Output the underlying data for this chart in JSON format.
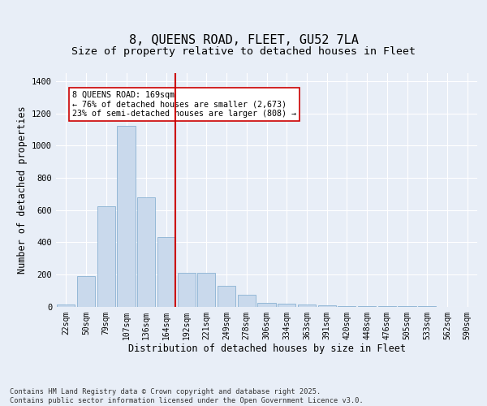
{
  "title1": "8, QUEENS ROAD, FLEET, GU52 7LA",
  "title2": "Size of property relative to detached houses in Fleet",
  "xlabel": "Distribution of detached houses by size in Fleet",
  "ylabel": "Number of detached properties",
  "categories": [
    "22sqm",
    "50sqm",
    "79sqm",
    "107sqm",
    "136sqm",
    "164sqm",
    "192sqm",
    "221sqm",
    "249sqm",
    "278sqm",
    "306sqm",
    "334sqm",
    "363sqm",
    "391sqm",
    "420sqm",
    "448sqm",
    "476sqm",
    "505sqm",
    "533sqm",
    "562sqm",
    "590sqm"
  ],
  "values": [
    15,
    190,
    625,
    1120,
    680,
    430,
    210,
    210,
    130,
    75,
    25,
    20,
    15,
    10,
    5,
    4,
    2,
    1,
    1,
    0,
    0
  ],
  "bar_color": "#c9d9ec",
  "bar_edge_color": "#7aa8cc",
  "vline_x_index": 5,
  "vline_color": "#cc0000",
  "annotation_text": "8 QUEENS ROAD: 169sqm\n← 76% of detached houses are smaller (2,673)\n23% of semi-detached houses are larger (808) →",
  "annotation_box_color": "#ffffff",
  "annotation_box_edge": "#cc0000",
  "ylim": [
    0,
    1450
  ],
  "yticks": [
    0,
    200,
    400,
    600,
    800,
    1000,
    1200,
    1400
  ],
  "footnote": "Contains HM Land Registry data © Crown copyright and database right 2025.\nContains public sector information licensed under the Open Government Licence v3.0.",
  "bg_color": "#e8eef7",
  "plot_bg_color": "#e8eef7",
  "grid_color": "#ffffff",
  "title_fontsize": 11,
  "subtitle_fontsize": 9.5,
  "tick_fontsize": 7,
  "label_fontsize": 8.5
}
